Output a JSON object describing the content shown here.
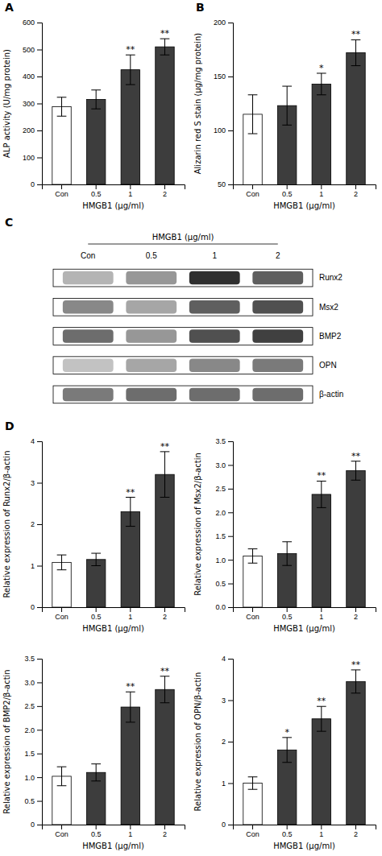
{
  "chart_data": [
    {
      "type": "bar",
      "title": "A",
      "categories": [
        "Con",
        "0.5",
        "1",
        "2"
      ],
      "values": [
        288,
        315,
        425,
        510
      ],
      "errors": [
        35,
        35,
        55,
        30
      ],
      "colors": [
        "#ffffff",
        "#3d3d3d",
        "#3d3d3d",
        "#3d3d3d"
      ],
      "ylabel": "ALP activity (U/mg protein)",
      "xlabel": "HMGB1 (μg/ml)",
      "ylim": [
        0,
        600
      ],
      "yticks": [
        0,
        100,
        200,
        300,
        400,
        500,
        600
      ],
      "annotations": [
        null,
        null,
        "**",
        "**"
      ]
    },
    {
      "type": "bar",
      "title": "B",
      "categories": [
        "Con",
        "0.5",
        "1",
        "2"
      ],
      "values": [
        115,
        123,
        143,
        172
      ],
      "errors": [
        18,
        18,
        10,
        12
      ],
      "colors": [
        "#ffffff",
        "#3d3d3d",
        "#3d3d3d",
        "#3d3d3d"
      ],
      "ylabel": "Alizarin red S stain (μg/mg protein)",
      "xlabel": "HMGB1 (μg/ml)",
      "ylim": [
        50,
        200
      ],
      "yticks": [
        50,
        100,
        150,
        200
      ],
      "annotations": [
        null,
        null,
        "*",
        "**"
      ]
    },
    {
      "type": "heatmap",
      "title": "C",
      "xlabel": "HMGB1 (μg/ml)",
      "x": [
        "Con",
        "0.5",
        "1",
        "2"
      ],
      "y": [
        "Runx2",
        "Msx2",
        "BMP2",
        "OPN",
        "β-actin"
      ],
      "values": [
        [
          0.4,
          0.5,
          0.85,
          0.7
        ],
        [
          0.55,
          0.45,
          0.7,
          0.75
        ],
        [
          0.65,
          0.5,
          0.75,
          0.8
        ],
        [
          0.35,
          0.45,
          0.55,
          0.6
        ],
        [
          0.6,
          0.65,
          0.65,
          0.65
        ]
      ]
    },
    {
      "type": "bar",
      "title": "D",
      "categories": [
        "Con",
        "0.5",
        "1",
        "2"
      ],
      "values": [
        1.08,
        1.15,
        2.3,
        3.2
      ],
      "errors": [
        0.18,
        0.15,
        0.35,
        0.55
      ],
      "colors": [
        "#ffffff",
        "#3d3d3d",
        "#3d3d3d",
        "#3d3d3d"
      ],
      "ylabel": "Relative expression of Runx2/β-actin",
      "xlabel": "HMGB1 (μg/ml)",
      "ylim": [
        0,
        4
      ],
      "yticks": [
        0,
        1,
        2,
        3,
        4
      ],
      "annotations": [
        null,
        null,
        "**",
        "**"
      ]
    },
    {
      "type": "bar",
      "categories": [
        "Con",
        "0.5",
        "1",
        "2"
      ],
      "values": [
        1.08,
        1.13,
        2.38,
        2.88
      ],
      "errors": [
        0.15,
        0.25,
        0.28,
        0.2
      ],
      "colors": [
        "#ffffff",
        "#3d3d3d",
        "#3d3d3d",
        "#3d3d3d"
      ],
      "ylabel": "Relative expression of Msx2/β-actin",
      "xlabel": "HMGB1 (μg/ml)",
      "ylim": [
        0.0,
        3.5
      ],
      "yticks": [
        {
          "value": 0,
          "label": "0.0"
        },
        0.5,
        {
          "value": 1,
          "label": "1.0"
        },
        1.5,
        {
          "value": 2,
          "label": "2.0"
        },
        2.5,
        {
          "value": 3,
          "label": "3.0"
        },
        3.5
      ],
      "annotations": [
        null,
        null,
        "**",
        "**"
      ]
    },
    {
      "type": "bar",
      "categories": [
        "Con",
        "0.5",
        "1",
        "2"
      ],
      "values": [
        1.02,
        1.1,
        2.48,
        2.85
      ],
      "errors": [
        0.2,
        0.18,
        0.32,
        0.28
      ],
      "colors": [
        "#ffffff",
        "#3d3d3d",
        "#3d3d3d",
        "#3d3d3d"
      ],
      "ylabel": "Relative expression of BMP2/β-actin",
      "xlabel": "HMGB1 (μg/ml)",
      "ylim": [
        0,
        3.5
      ],
      "yticks": [
        0,
        0.5,
        {
          "value": 1,
          "label": "1.0"
        },
        1.5,
        {
          "value": 2,
          "label": "2.0"
        },
        2.5,
        {
          "value": 3,
          "label": "3.0"
        },
        3.5
      ],
      "annotations": [
        null,
        null,
        "**",
        "**"
      ]
    },
    {
      "type": "bar",
      "categories": [
        "Con",
        "0.5",
        "1",
        "2"
      ],
      "values": [
        1.0,
        1.8,
        2.55,
        3.45
      ],
      "errors": [
        0.15,
        0.3,
        0.3,
        0.28
      ],
      "colors": [
        "#ffffff",
        "#3d3d3d",
        "#3d3d3d",
        "#3d3d3d"
      ],
      "ylabel": "Relative expression of OPN/β-actin",
      "xlabel": "HMGB1 (μg/ml)",
      "ylim": [
        0,
        4
      ],
      "yticks": [
        0,
        1,
        2,
        3,
        4
      ],
      "annotations": [
        null,
        "*",
        "**",
        "**"
      ]
    }
  ]
}
